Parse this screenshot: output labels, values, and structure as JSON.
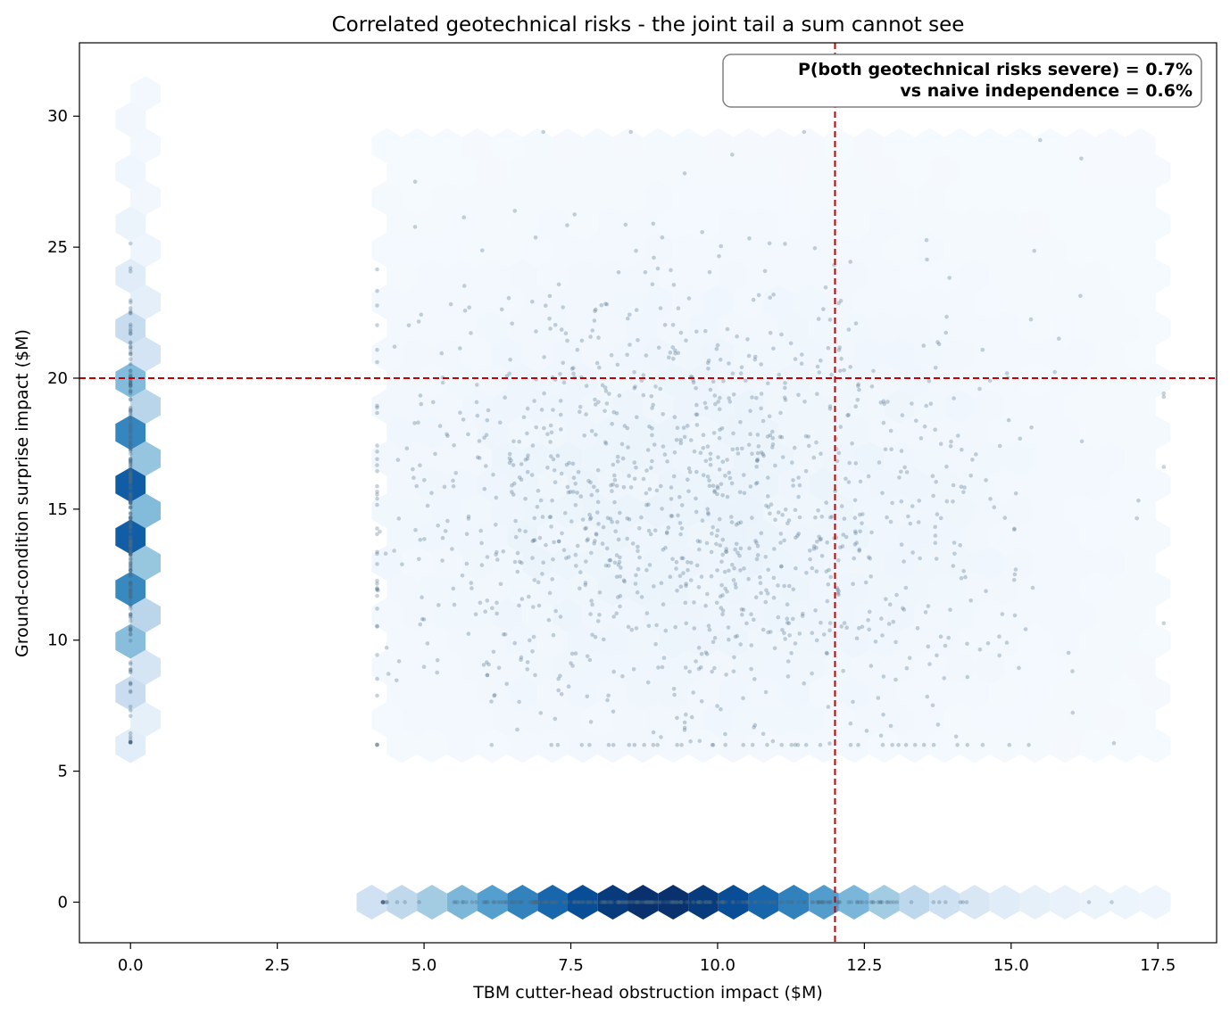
{
  "chart_data": {
    "type": "scatter",
    "title": "Correlated geotechnical risks - the joint tail a sum cannot see",
    "xlabel": "TBM cutter-head obstruction impact  ($M)",
    "ylabel": "Ground-condition surprise impact  ($M)",
    "xlim": [
      -0.87,
      18.5
    ],
    "ylim": [
      -1.55,
      32.8
    ],
    "xticks": [
      0.0,
      2.5,
      5.0,
      7.5,
      10.0,
      12.5,
      15.0,
      17.5
    ],
    "xtick_labels": [
      "0.0",
      "2.5",
      "5.0",
      "7.5",
      "10.0",
      "12.5",
      "15.0",
      "17.5"
    ],
    "yticks": [
      0,
      5,
      10,
      15,
      20,
      25,
      30
    ],
    "ytick_labels": [
      "0",
      "5",
      "10",
      "15",
      "20",
      "25",
      "30"
    ],
    "grid": false,
    "colormap": "Blues",
    "point_color": "#4a6a85",
    "threshold_color": "#c40000",
    "thresholds": {
      "x": 12.0,
      "y": 20.0
    },
    "annotation": {
      "line1": "P(both geotechnical risks severe) = 0.7%",
      "line2": "vs naive independence = 0.6%",
      "placement": "top-right"
    },
    "layers": {
      "hexbin": "hexbin density of all simulated outcomes",
      "scatter": "sample of simulated outcomes"
    },
    "distributions": {
      "x_only_band": {
        "y": 0,
        "x_range": [
          4.3,
          17.6
        ],
        "peak_x": 9.0
      },
      "y_only_band": {
        "x": 0,
        "y_range": [
          6.1,
          28.2
        ],
        "peak_y": 15.0
      },
      "joint_cloud": {
        "x_range": [
          4.2,
          17.6
        ],
        "y_range": [
          6.0,
          29.4
        ],
        "center": [
          9.5,
          15.0
        ]
      }
    }
  }
}
